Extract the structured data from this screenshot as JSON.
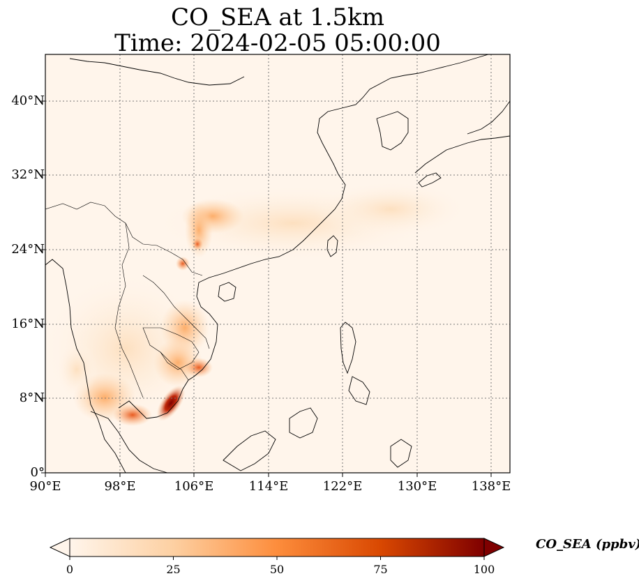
{
  "title": {
    "line1": "CO_SEA at 1.5km",
    "line2": "Time: 2024-02-05 05:00:00"
  },
  "map": {
    "lon_range": [
      90,
      140
    ],
    "lat_range": [
      0,
      45
    ],
    "x_ticks": [
      "90°E",
      "98°E",
      "106°E",
      "114°E",
      "122°E",
      "130°E",
      "138°E"
    ],
    "y_ticks": [
      "0°",
      "8°N",
      "16°N",
      "24°N",
      "32°N",
      "40°N"
    ],
    "gridlines": true
  },
  "colorbar": {
    "label": "CO_SEA (ppbv)",
    "ticks": [
      "0",
      "25",
      "50",
      "75",
      "100"
    ],
    "min": 0,
    "max": 100,
    "colors": [
      "#fff5eb",
      "#fdd0a2",
      "#fd8d3c",
      "#d94801",
      "#7f0000"
    ]
  }
}
